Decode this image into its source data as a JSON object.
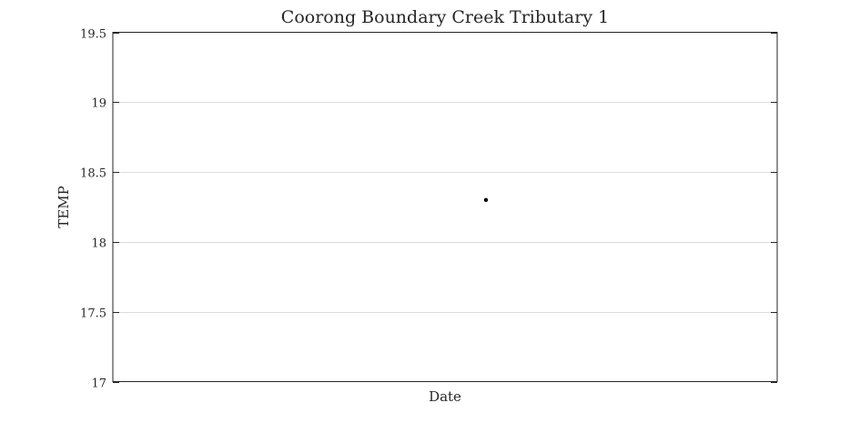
{
  "chart_data": {
    "type": "scatter",
    "title": "Coorong Boundary Creek Tributary 1",
    "xlabel": "Date",
    "ylabel": "TEMP",
    "ylim": [
      17,
      19.5
    ],
    "yticks": [
      17,
      17.5,
      18,
      18.5,
      19,
      19.5
    ],
    "ytick_labels": [
      "17",
      "17.5",
      "18",
      "18.5",
      "19",
      "19.5"
    ],
    "xlim": [
      0,
      1
    ],
    "grid": "horizontal",
    "legend": "none",
    "colors": {
      "marker": "#000000",
      "grid": "#dcdcdc",
      "axes": "#262626"
    },
    "series": [
      {
        "x": [
          0.5616
        ],
        "y": [
          18.3
        ]
      }
    ]
  }
}
